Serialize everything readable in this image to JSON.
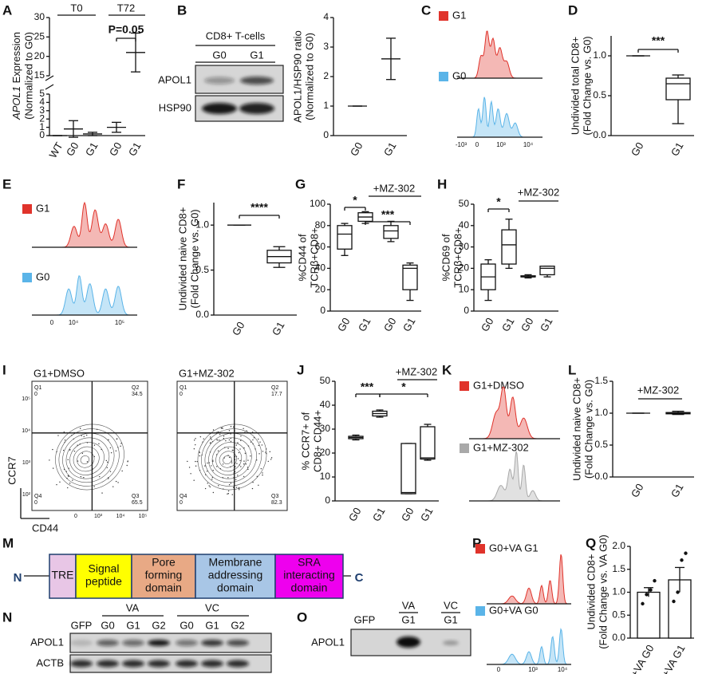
{
  "A": {
    "letter": "A",
    "ylabel": {
      "gene": "APOL1",
      "rest": " Expression",
      "line2": "(Normalized to G0)"
    },
    "groups": [
      "T0",
      "T72"
    ],
    "p_value": "P=0.05",
    "categories": [
      "WT",
      "G0",
      "G1",
      "G0",
      "G1"
    ],
    "values": [
      0,
      0.8,
      0.2,
      1,
      21
    ],
    "errors": [
      0,
      1,
      0.2,
      0.6,
      5
    ],
    "ylim_lower": [
      0,
      5
    ],
    "yticks_lower": [
      0,
      1,
      2,
      3,
      4,
      5
    ],
    "ylim_upper": [
      15,
      30
    ],
    "yticks_upper": [
      15,
      20,
      25,
      30
    ]
  },
  "B": {
    "letter": "B",
    "blot": {
      "title": "CD8+ T-cells",
      "lanes": [
        "G0",
        "G1"
      ],
      "rows": [
        "APOL1",
        "HSP90"
      ]
    },
    "chart": {
      "ylabel": [
        "APOL1/HSP90 ratio",
        "(Normalized to G0)"
      ],
      "categories": [
        "G0",
        "G1"
      ],
      "values": [
        1,
        2.6
      ],
      "errors": [
        0,
        0.7
      ],
      "ylim": [
        0,
        4
      ],
      "yticks": [
        0,
        1,
        2,
        3,
        4
      ]
    }
  },
  "C": {
    "letter": "C",
    "legend": [
      {
        "label": "G1",
        "color": "#e0332b"
      },
      {
        "label": "G0",
        "color": "#5ab4e8"
      }
    ],
    "xticks": [
      "-10³",
      "0",
      "10³",
      "10⁴"
    ]
  },
  "D": {
    "letter": "D",
    "ylabel": [
      "Undivided total CD8+",
      "(Fold Change vs. G0)"
    ],
    "categories": [
      "G0",
      "G1"
    ],
    "boxes": [
      {
        "min": 1,
        "q1": 1,
        "median": 1,
        "q3": 1,
        "max": 1
      },
      {
        "min": 0.15,
        "q1": 0.45,
        "median": 0.65,
        "q3": 0.72,
        "max": 0.76
      }
    ],
    "ylim": [
      0,
      1.25
    ],
    "yticks": [
      {
        "value": 0,
        "label": "0.0"
      },
      0.5,
      {
        "value": 1,
        "label": "1.0"
      }
    ],
    "annotations": [
      "***"
    ]
  },
  "E": {
    "letter": "E",
    "legend": [
      {
        "label": "G1",
        "color": "#e0332b"
      },
      {
        "label": "G0",
        "color": "#5ab4e8"
      }
    ],
    "xticks": [
      "0",
      "10⁴",
      "10⁵"
    ]
  },
  "F": {
    "letter": "F",
    "ylabel": [
      "Undivided naive CD8+",
      "(Fold Change vs. G0)"
    ],
    "categories": [
      "G0",
      "G1"
    ],
    "boxes": [
      {
        "min": 1,
        "q1": 1,
        "median": 1,
        "q3": 1,
        "max": 1
      },
      {
        "min": 0.53,
        "q1": 0.58,
        "median": 0.65,
        "q3": 0.72,
        "max": 0.76
      }
    ],
    "ylim": [
      0,
      1.25
    ],
    "yticks": [
      {
        "value": 0,
        "label": "0.0"
      },
      0.5,
      {
        "value": 1,
        "label": "1.0"
      }
    ],
    "annotations": [
      "****"
    ]
  },
  "G": {
    "letter": "G",
    "ylabel": [
      "%CD44 of",
      "TCRβ+CD8+"
    ],
    "categories": [
      "G0",
      "G1",
      "G0",
      "G1"
    ],
    "boxes": [
      {
        "min": 52,
        "q1": 58,
        "median": 72,
        "q3": 80,
        "max": 82
      },
      {
        "min": 82,
        "q1": 84,
        "median": 88,
        "q3": 92,
        "max": 93
      },
      {
        "min": 65,
        "q1": 68,
        "median": 75,
        "q3": 80,
        "max": 84
      },
      {
        "min": 10,
        "q1": 20,
        "median": 40,
        "q3": 43,
        "max": 45
      }
    ],
    "ylim": [
      0,
      100
    ],
    "yticks": [
      0,
      20,
      40,
      60,
      80,
      100
    ],
    "treatment": "+MZ-302",
    "annotations": [
      "*",
      "***"
    ]
  },
  "H": {
    "letter": "H",
    "ylabel": [
      "%CD69 of",
      "TCRβ+CD8+"
    ],
    "categories": [
      "G0",
      "G1",
      "G0",
      "G1"
    ],
    "boxes": [
      {
        "min": 5,
        "q1": 10,
        "median": 16,
        "q3": 22,
        "max": 24
      },
      {
        "min": 20,
        "q1": 22,
        "median": 31,
        "q3": 38,
        "max": 43
      },
      {
        "min": 15.5,
        "q1": 16,
        "median": 16,
        "q3": 16.5,
        "max": 17
      },
      {
        "min": 16,
        "q1": 17,
        "median": 20,
        "q3": 21,
        "max": 21
      }
    ],
    "ylim": [
      0,
      50
    ],
    "yticks": [
      0,
      10,
      20,
      30,
      40,
      50
    ],
    "treatment": "+MZ-302",
    "annotations": [
      "*"
    ]
  },
  "I": {
    "letter": "I",
    "plots": [
      {
        "title": "G1+DMSO",
        "quadrants": [
          {
            "name": "Q1",
            "value": 0
          },
          {
            "name": "Q2",
            "value": 34.5
          },
          {
            "name": "Q3",
            "value": 65.5
          },
          {
            "name": "Q4",
            "value": 0
          }
        ]
      },
      {
        "title": "G1+MZ-302",
        "quadrants": [
          {
            "name": "Q1",
            "value": 0
          },
          {
            "name": "Q2",
            "value": 17.7
          },
          {
            "name": "Q3",
            "value": 82.3
          },
          {
            "name": "Q4",
            "value": 0
          }
        ]
      }
    ],
    "ylabel": "CCR7",
    "xlabel": "CD44",
    "yticks": [
      "10⁵",
      "10⁴",
      "10³",
      "10²"
    ],
    "xticks": [
      "0",
      "10³",
      "10⁴",
      "10⁵"
    ]
  },
  "J": {
    "letter": "J",
    "ylabel": [
      "% CCR7+ of",
      "CD8+ CD44+"
    ],
    "categories": [
      "G0",
      "G1",
      "G0",
      "G1"
    ],
    "boxes": [
      {
        "min": 25.5,
        "q1": 26,
        "median": 26.5,
        "q3": 27,
        "max": 27.5
      },
      {
        "min": 35,
        "q1": 35.5,
        "median": 36.5,
        "q3": 37.5,
        "max": 38
      },
      {
        "min": 3,
        "q1": 3,
        "median": 3.5,
        "q3": 24,
        "max": 24
      },
      {
        "min": 17,
        "q1": 17.5,
        "median": 18,
        "q3": 31,
        "max": 32
      }
    ],
    "ylim": [
      0,
      50
    ],
    "yticks": [
      0,
      10,
      20,
      30,
      40,
      50
    ],
    "treatment": "+MZ-302",
    "annotations": [
      "***",
      "*"
    ]
  },
  "K": {
    "letter": "K",
    "legend": [
      {
        "label": "G1+DMSO",
        "color": "#e0332b"
      },
      {
        "label": "G1+MZ-302",
        "color": "#a9a9a9"
      }
    ]
  },
  "L": {
    "letter": "L",
    "ylabel": [
      "Undivided naive CD8+",
      "(Fold Change vs. G0)"
    ],
    "categories": [
      "G0",
      "G1"
    ],
    "boxes": [
      {
        "min": 1,
        "q1": 1,
        "median": 1,
        "q3": 1,
        "max": 1
      },
      {
        "min": 0.98,
        "q1": 0.99,
        "median": 1,
        "q3": 1.01,
        "max": 1.03
      }
    ],
    "ylim": [
      0,
      1.5
    ],
    "yticks": [
      {
        "value": 0,
        "label": "0.0"
      },
      0.5,
      {
        "value": 1,
        "label": "1.0"
      },
      1.5
    ],
    "treatment": "+MZ-302"
  },
  "M": {
    "letter": "M",
    "n_term": "N",
    "c_term": "C",
    "domains": [
      {
        "label": [
          "TRE"
        ],
        "color": "#e8c6e6"
      },
      {
        "label": [
          "Signal",
          "peptide"
        ],
        "color": "#ffff00"
      },
      {
        "label": [
          "Pore",
          "forming",
          "domain"
        ],
        "color": "#e8a985"
      },
      {
        "label": [
          "Membrane",
          "addressing",
          "domain"
        ],
        "color": "#a8c6e6"
      },
      {
        "label": [
          "SRA",
          "interacting",
          "domain"
        ],
        "color": "#ee00ee"
      }
    ]
  },
  "N": {
    "letter": "N",
    "groups": [
      "VA",
      "VC"
    ],
    "lanes": [
      "GFP",
      "G0",
      "G1",
      "G2",
      "G0",
      "G1",
      "G2"
    ],
    "rows": [
      "APOL1",
      "ACTB"
    ]
  },
  "O": {
    "letter": "O",
    "groups": [
      "VA",
      "VC"
    ],
    "lanes": [
      "GFP",
      "G1",
      "G1"
    ],
    "rows": [
      "APOL1"
    ]
  },
  "P": {
    "letter": "P",
    "legend": [
      {
        "label": "G0+VA G1",
        "color": "#e0332b"
      },
      {
        "label": "G0+VA G0",
        "color": "#5ab4e8"
      }
    ],
    "xticks": [
      "0",
      "10³",
      "10⁴"
    ]
  },
  "Q": {
    "letter": "Q",
    "ylabel": [
      "Undivided CD8+",
      "(Fold Change vs. VA G0)"
    ],
    "categories": [
      "+VA G0",
      "+VA G1"
    ],
    "values": [
      1,
      1.27
    ],
    "errors": [
      0.1,
      0.27
    ],
    "points": [
      [
        0.75,
        0.95,
        1.05,
        1.25
      ],
      [
        0.8,
        1,
        1.7,
        1.85
      ]
    ],
    "ylim": [
      0,
      2
    ],
    "yticks": [
      {
        "value": 0,
        "label": "0.0"
      },
      0.5,
      {
        "value": 1,
        "label": "1.0"
      },
      1.5,
      {
        "value": 2,
        "label": "2.0"
      }
    ]
  }
}
